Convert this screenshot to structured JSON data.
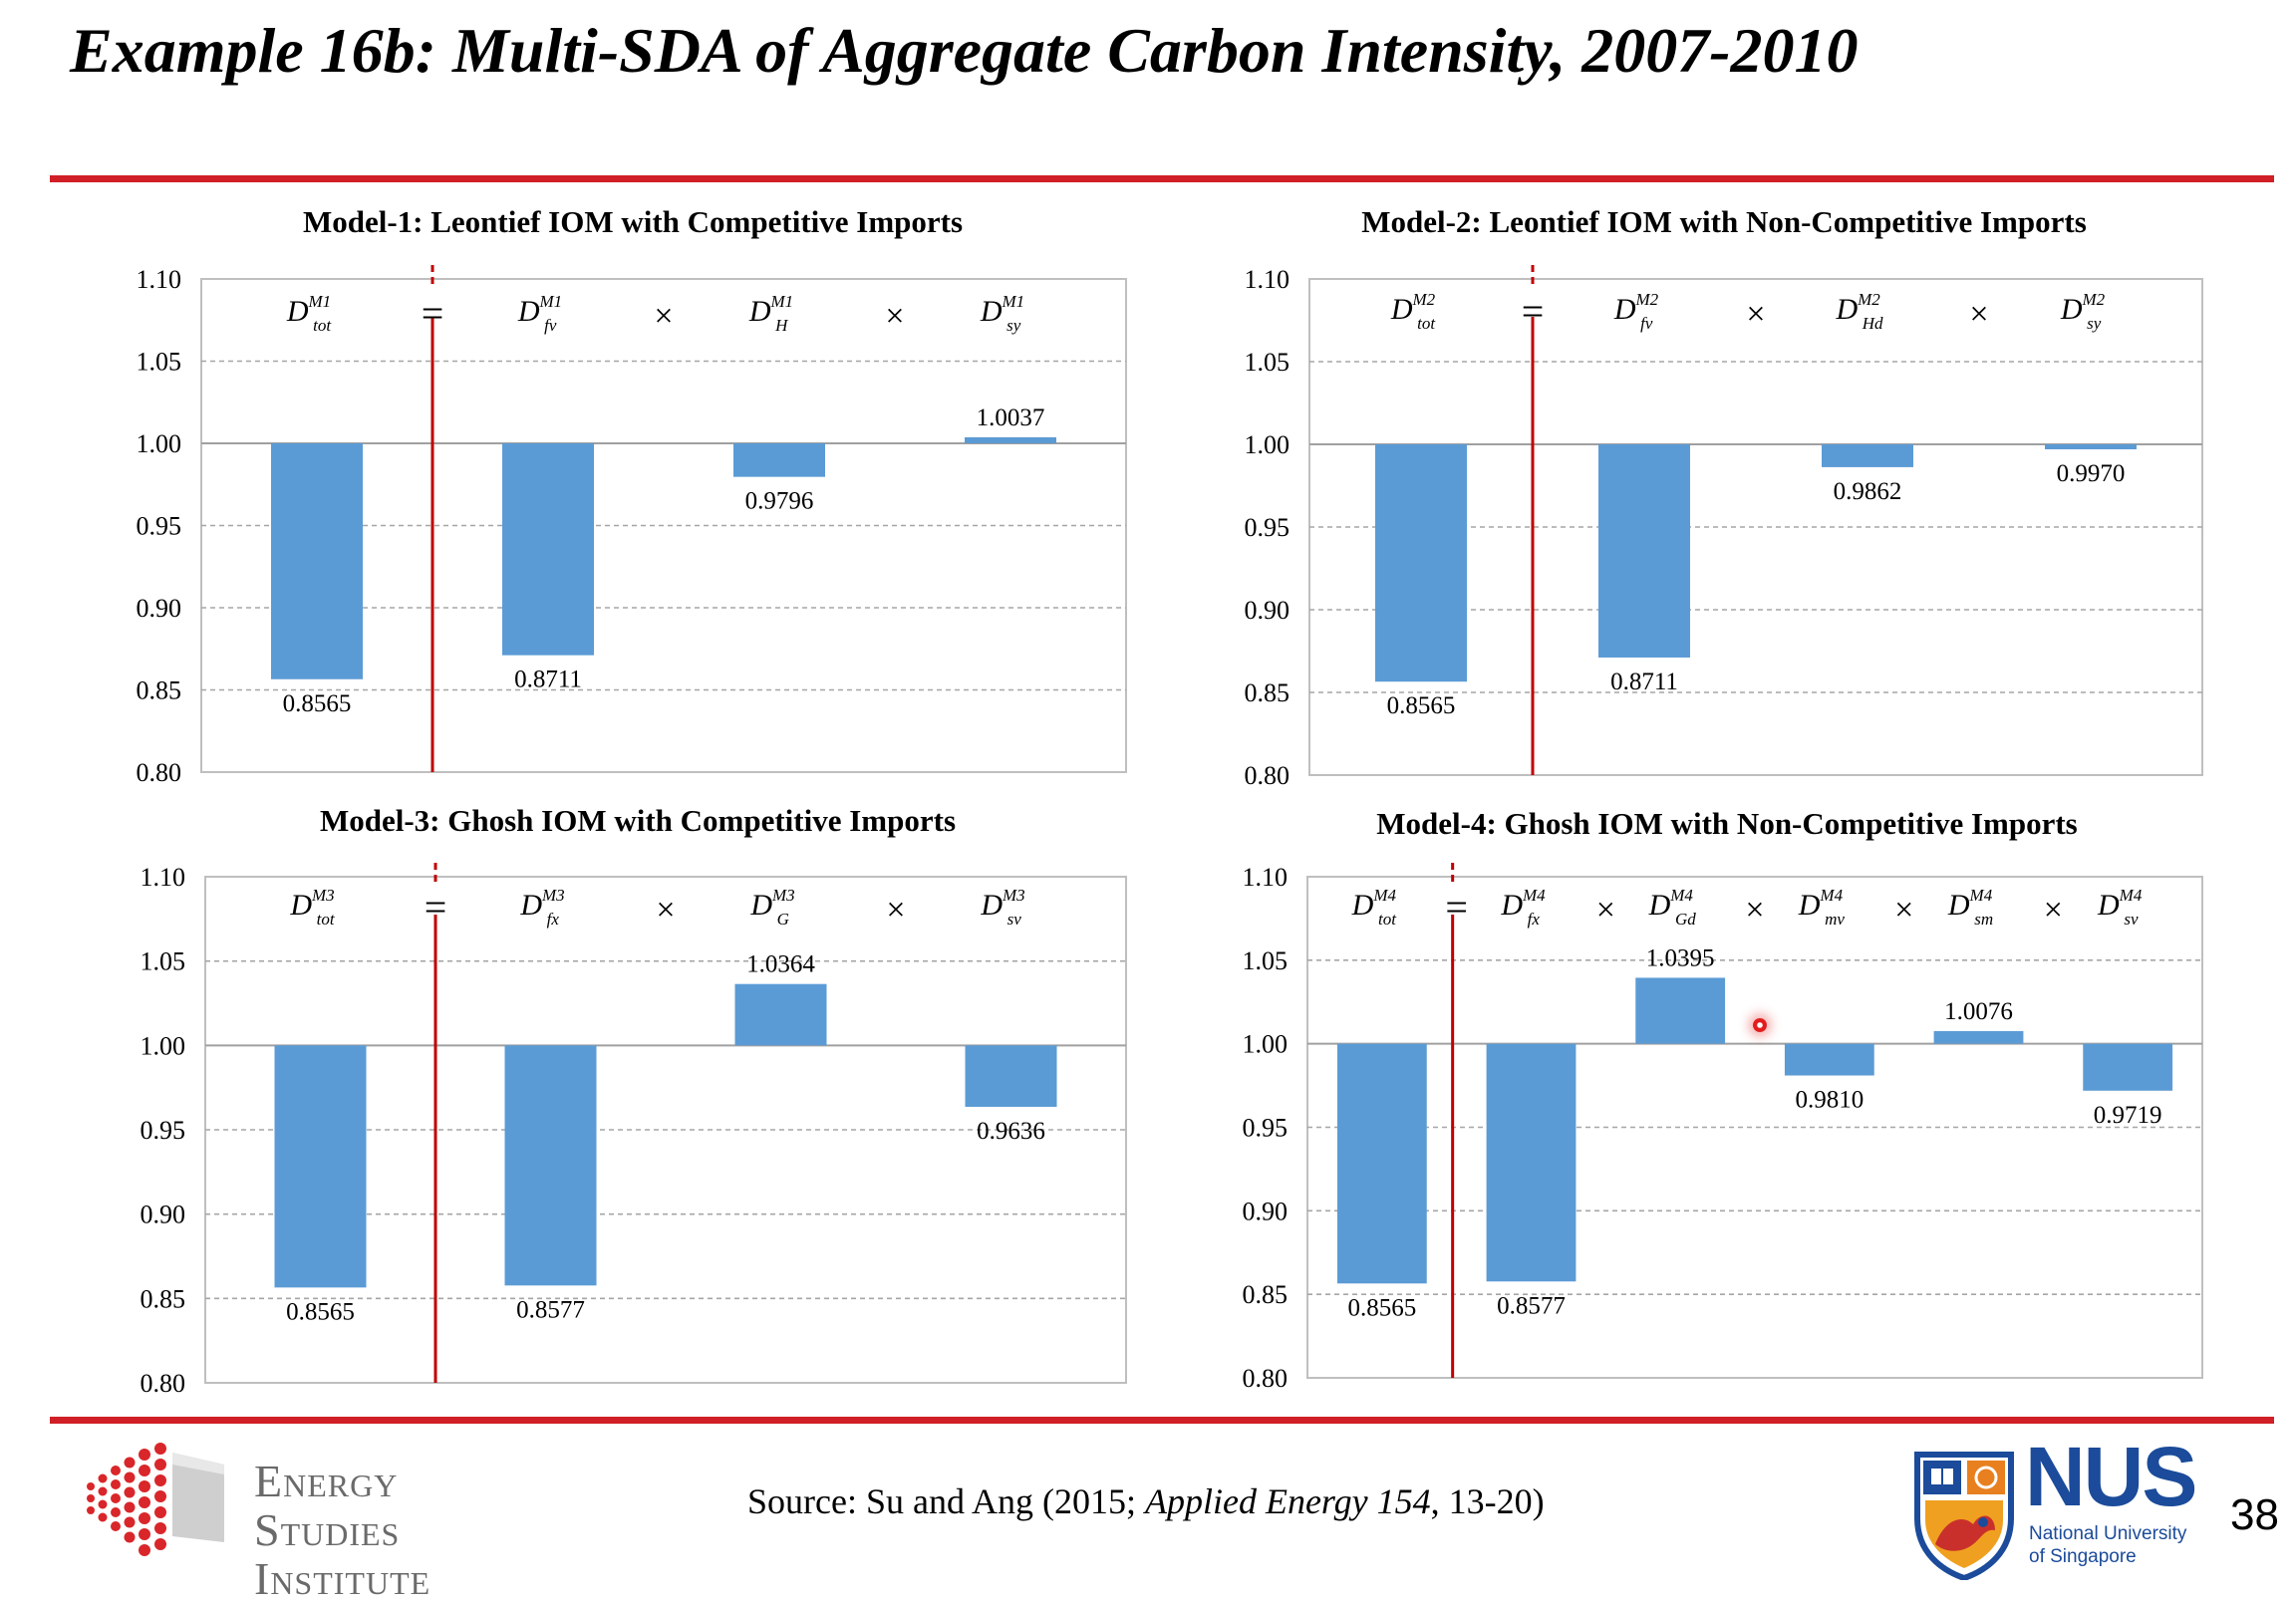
{
  "slide": {
    "title": "Example 16b: Multi-SDA of Aggregate Carbon Intensity, 2007-2010",
    "source_prefix": "Source: Su and Ang (2015; ",
    "source_journal": "Applied Energy 154",
    "source_suffix": ", 13-20)",
    "page_number": "38"
  },
  "logos": {
    "esi_line1": "Energy",
    "esi_line2": "Studies",
    "esi_line3": "Institute",
    "nus_word": "NUS",
    "nus_sub1": "National University",
    "nus_sub2": "of Singapore"
  },
  "colors": {
    "bar": "#5b9bd5",
    "red_rule": "#d01f26",
    "divider": "#c00000",
    "grid": "#a6a6a6"
  },
  "chart_data": [
    {
      "type": "bar",
      "title": "Model-1: Leontief IOM with Competitive Imports",
      "ylim": [
        0.8,
        1.1
      ],
      "yticks": [
        "1.10",
        "1.05",
        "1.00",
        "0.95",
        "0.90",
        "0.85",
        "0.80"
      ],
      "baseline": 1.0,
      "grid": true,
      "categories": [
        {
          "base": "D",
          "sup": "M1",
          "sub": "tot"
        },
        {
          "base": "D",
          "sup": "M1",
          "sub": "fv"
        },
        {
          "base": "D",
          "sup": "M1",
          "sub": "H"
        },
        {
          "base": "D",
          "sup": "M1",
          "sub": "sy"
        }
      ],
      "operators": [
        "=",
        "×",
        "×"
      ],
      "values": [
        0.8565,
        0.8711,
        0.9796,
        1.0037
      ],
      "labels": [
        "0.8565",
        "0.8711",
        "0.9796",
        "1.0037"
      ]
    },
    {
      "type": "bar",
      "title": "Model-2: Leontief IOM with Non-Competitive Imports",
      "ylim": [
        0.8,
        1.1
      ],
      "yticks": [
        "1.10",
        "1.05",
        "1.00",
        "0.95",
        "0.90",
        "0.85",
        "0.80"
      ],
      "baseline": 1.0,
      "grid": true,
      "categories": [
        {
          "base": "D",
          "sup": "M2",
          "sub": "tot"
        },
        {
          "base": "D",
          "sup": "M2",
          "sub": "fv"
        },
        {
          "base": "D",
          "sup": "M2",
          "sub": "Hd"
        },
        {
          "base": "D",
          "sup": "M2",
          "sub": "sy"
        }
      ],
      "operators": [
        "=",
        "×",
        "×"
      ],
      "values": [
        0.8565,
        0.8711,
        0.9862,
        0.997
      ],
      "labels": [
        "0.8565",
        "0.8711",
        "0.9862",
        "0.9970"
      ]
    },
    {
      "type": "bar",
      "title": "Model-3: Ghosh IOM with Competitive Imports",
      "ylim": [
        0.8,
        1.1
      ],
      "yticks": [
        "1.10",
        "1.05",
        "1.00",
        "0.95",
        "0.90",
        "0.85",
        "0.80"
      ],
      "baseline": 1.0,
      "grid": true,
      "categories": [
        {
          "base": "D",
          "sup": "M3",
          "sub": "tot"
        },
        {
          "base": "D",
          "sup": "M3",
          "sub": "fx"
        },
        {
          "base": "D",
          "sup": "M3",
          "sub": "G"
        },
        {
          "base": "D",
          "sup": "M3",
          "sub": "sv"
        }
      ],
      "operators": [
        "=",
        "×",
        "×"
      ],
      "values": [
        0.8565,
        0.8577,
        1.0364,
        0.9636
      ],
      "labels": [
        "0.8565",
        "0.8577",
        "1.0364",
        "0.9636"
      ]
    },
    {
      "type": "bar",
      "title": "Model-4: Ghosh IOM with Non-Competitive Imports",
      "ylim": [
        0.8,
        1.1
      ],
      "yticks": [
        "1.10",
        "1.05",
        "1.00",
        "0.95",
        "0.90",
        "0.85",
        "0.80"
      ],
      "baseline": 1.0,
      "grid": true,
      "categories": [
        {
          "base": "D",
          "sup": "M4",
          "sub": "tot"
        },
        {
          "base": "D",
          "sup": "M4",
          "sub": "fx"
        },
        {
          "base": "D",
          "sup": "M4",
          "sub": "Gd"
        },
        {
          "base": "D",
          "sup": "M4",
          "sub": "mv"
        },
        {
          "base": "D",
          "sup": "M4",
          "sub": "sm"
        },
        {
          "base": "D",
          "sup": "M4",
          "sub": "sv"
        }
      ],
      "operators": [
        "=",
        "×",
        "×",
        "×",
        "×"
      ],
      "values": [
        0.8565,
        0.8577,
        1.0395,
        0.981,
        1.0076,
        0.9719
      ],
      "labels": [
        "0.8565",
        "0.8577",
        "1.0395",
        "0.9810",
        "1.0076",
        "0.9719"
      ]
    }
  ]
}
